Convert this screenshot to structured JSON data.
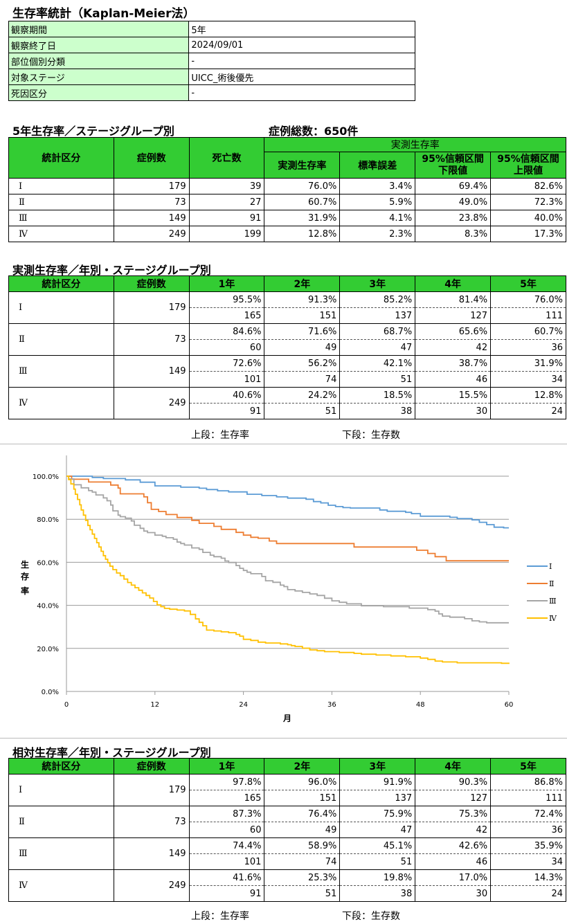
{
  "title": "生存率統計（Kaplan-Meier法）",
  "info": [
    {
      "label": "観察期間",
      "value": "5年"
    },
    {
      "label": "観察終了日",
      "value": "2024/09/01"
    },
    {
      "label": "部位個別分類",
      "value": "-"
    },
    {
      "label": "対象ステージ",
      "value": "UICC_術後優先"
    },
    {
      "label": "死因区分",
      "value": "-"
    }
  ],
  "section1": {
    "title": "5年生存率／ステージグループ別",
    "total": "症例総数：650件",
    "headers": {
      "group": "統計区分",
      "cases": "症例数",
      "deaths": "死亡数",
      "observed": "実測生存率",
      "rate": "実測生存率",
      "se": "標準誤差",
      "lower": "95%信頼区間\n下限値",
      "upper": "95%信頼区間\n上限値"
    },
    "rows": [
      [
        "Ⅰ",
        "179",
        "39",
        "76.0%",
        "3.4%",
        "69.4%",
        "82.6%"
      ],
      [
        "Ⅱ",
        "73",
        "27",
        "60.7%",
        "5.9%",
        "49.0%",
        "72.3%"
      ],
      [
        "Ⅲ",
        "149",
        "91",
        "31.9%",
        "4.1%",
        "23.8%",
        "40.0%"
      ],
      [
        "Ⅳ",
        "249",
        "199",
        "12.8%",
        "2.3%",
        "8.3%",
        "17.3%"
      ]
    ]
  },
  "section2": {
    "title": "実測生存率／年別・ステージグループ別",
    "headers": [
      "統計区分",
      "症例数",
      "1年",
      "2年",
      "3年",
      "4年",
      "5年"
    ],
    "rows": [
      {
        "stage": "Ⅰ",
        "cases": "179",
        "rates": [
          "95.5%",
          "91.3%",
          "85.2%",
          "81.4%",
          "76.0%"
        ],
        "counts": [
          "165",
          "151",
          "137",
          "127",
          "111"
        ]
      },
      {
        "stage": "Ⅱ",
        "cases": "73",
        "rates": [
          "84.6%",
          "71.6%",
          "68.7%",
          "65.6%",
          "60.7%"
        ],
        "counts": [
          "60",
          "49",
          "47",
          "42",
          "36"
        ]
      },
      {
        "stage": "Ⅲ",
        "cases": "149",
        "rates": [
          "72.6%",
          "56.2%",
          "42.1%",
          "38.7%",
          "31.9%"
        ],
        "counts": [
          "101",
          "74",
          "51",
          "46",
          "34"
        ]
      },
      {
        "stage": "Ⅳ",
        "cases": "249",
        "rates": [
          "40.6%",
          "24.2%",
          "18.5%",
          "15.5%",
          "12.8%"
        ],
        "counts": [
          "91",
          "51",
          "38",
          "30",
          "24"
        ]
      }
    ],
    "note_upper": "上段：生存率",
    "note_lower": "下段：生存数"
  },
  "section3": {
    "title": "相対生存率／年別・ステージグループ別",
    "headers": [
      "統計区分",
      "症例数",
      "1年",
      "2年",
      "3年",
      "4年",
      "5年"
    ],
    "rows": [
      {
        "stage": "Ⅰ",
        "cases": "179",
        "rates": [
          "97.8%",
          "96.0%",
          "91.9%",
          "90.3%",
          "86.8%"
        ],
        "counts": [
          "165",
          "151",
          "137",
          "127",
          "111"
        ]
      },
      {
        "stage": "Ⅱ",
        "cases": "73",
        "rates": [
          "87.3%",
          "76.4%",
          "75.9%",
          "75.3%",
          "72.4%"
        ],
        "counts": [
          "60",
          "49",
          "47",
          "42",
          "36"
        ]
      },
      {
        "stage": "Ⅲ",
        "cases": "149",
        "rates": [
          "74.4%",
          "58.9%",
          "45.1%",
          "42.6%",
          "35.9%"
        ],
        "counts": [
          "101",
          "74",
          "51",
          "46",
          "34"
        ]
      },
      {
        "stage": "Ⅳ",
        "cases": "249",
        "rates": [
          "41.6%",
          "25.3%",
          "19.8%",
          "17.0%",
          "14.3%"
        ],
        "counts": [
          "91",
          "51",
          "38",
          "30",
          "24"
        ]
      }
    ],
    "note_upper": "上段：生存率",
    "note_lower": "下段：生存数"
  },
  "chart_data": {
    "type": "line",
    "step": true,
    "xlabel": "月",
    "ylabel": "生存率",
    "xlim": [
      0,
      60
    ],
    "ylim": [
      0,
      100
    ],
    "xticks": [
      0,
      12,
      24,
      36,
      48,
      60
    ],
    "xtick_labels": [
      "0",
      "12",
      "24",
      "36",
      "48",
      "60"
    ],
    "yticks": [
      0,
      20,
      40,
      60,
      80,
      100
    ],
    "ytick_labels": [
      "0.0%",
      "20.0%",
      "40.0%",
      "60.0%",
      "80.0%",
      "100.0%"
    ],
    "grid": "horizontal",
    "legend_position": "right",
    "series": [
      {
        "name": "Ⅰ",
        "color": "#5b9bd5",
        "points": [
          [
            0,
            100
          ],
          [
            2,
            100
          ],
          [
            3.5,
            99.4
          ],
          [
            5,
            98.9
          ],
          [
            8,
            98.3
          ],
          [
            10,
            97.2
          ],
          [
            12,
            95.5
          ],
          [
            15,
            95.5
          ],
          [
            15.5,
            94.9
          ],
          [
            18,
            94.4
          ],
          [
            19,
            93.8
          ],
          [
            20.5,
            93.2
          ],
          [
            22,
            92.7
          ],
          [
            24,
            92.7
          ],
          [
            24.5,
            91.6
          ],
          [
            26.5,
            91
          ],
          [
            28.5,
            90.4
          ],
          [
            30,
            89.8
          ],
          [
            32.5,
            89.3
          ],
          [
            33.5,
            88.2
          ],
          [
            34.5,
            87.6
          ],
          [
            35.5,
            86.5
          ],
          [
            36.5,
            85.9
          ],
          [
            37.5,
            85.4
          ],
          [
            38.5,
            85.2
          ],
          [
            42,
            85.2
          ],
          [
            42.5,
            84.3
          ],
          [
            43.5,
            83.7
          ],
          [
            46,
            83.2
          ],
          [
            46.8,
            82.6
          ],
          [
            48,
            81.4
          ],
          [
            49,
            81.4
          ],
          [
            50,
            81.4
          ],
          [
            51.5,
            81.4
          ],
          [
            52,
            80.9
          ],
          [
            53,
            80.3
          ],
          [
            55,
            79.7
          ],
          [
            56,
            78.6
          ],
          [
            57,
            77.5
          ],
          [
            58,
            76.3
          ],
          [
            59.3,
            76
          ],
          [
            60,
            76
          ]
        ]
      },
      {
        "name": "Ⅱ",
        "color": "#ed7d31",
        "points": [
          [
            0,
            100
          ],
          [
            0.7,
            98.6
          ],
          [
            1,
            98.6
          ],
          [
            3,
            97.3
          ],
          [
            6,
            95.9
          ],
          [
            7,
            94.5
          ],
          [
            7.3,
            91.8
          ],
          [
            10,
            91.8
          ],
          [
            10.5,
            90.4
          ],
          [
            11,
            87.7
          ],
          [
            11.5,
            84.6
          ],
          [
            12,
            84.6
          ],
          [
            12.5,
            83.6
          ],
          [
            13.5,
            82.2
          ],
          [
            15,
            80.8
          ],
          [
            17,
            79.5
          ],
          [
            18,
            78.1
          ],
          [
            20,
            76.7
          ],
          [
            21,
            75.3
          ],
          [
            23,
            73.9
          ],
          [
            24,
            72.6
          ],
          [
            25,
            71.6
          ],
          [
            26,
            71.2
          ],
          [
            27.5,
            69.9
          ],
          [
            28.5,
            68.7
          ],
          [
            36,
            68.7
          ],
          [
            39,
            67.1
          ],
          [
            47,
            67.1
          ],
          [
            47.5,
            65.6
          ],
          [
            48,
            65.6
          ],
          [
            49,
            64.1
          ],
          [
            50,
            62.6
          ],
          [
            51.5,
            60.7
          ],
          [
            60,
            60.7
          ]
        ]
      },
      {
        "name": "Ⅲ",
        "color": "#a5a5a5",
        "points": [
          [
            0,
            100
          ],
          [
            0.3,
            98.7
          ],
          [
            1,
            96
          ],
          [
            2,
            94.6
          ],
          [
            3,
            93.3
          ],
          [
            3.5,
            92.6
          ],
          [
            4,
            91.3
          ],
          [
            5,
            89.9
          ],
          [
            5.5,
            88.6
          ],
          [
            6,
            86.6
          ],
          [
            6.3,
            83.9
          ],
          [
            7,
            81.9
          ],
          [
            7.3,
            81.2
          ],
          [
            8,
            80.5
          ],
          [
            8.8,
            79.2
          ],
          [
            9.2,
            77.2
          ],
          [
            10,
            75.8
          ],
          [
            10.5,
            74.5
          ],
          [
            11,
            73.8
          ],
          [
            12,
            72.6
          ],
          [
            13,
            72.1
          ],
          [
            13.5,
            71.4
          ],
          [
            14.5,
            70.7
          ],
          [
            15,
            69.4
          ],
          [
            15.5,
            68.7
          ],
          [
            16,
            68
          ],
          [
            17,
            66.7
          ],
          [
            18,
            66
          ],
          [
            18.5,
            64.6
          ],
          [
            19.5,
            63.3
          ],
          [
            20,
            62.6
          ],
          [
            21,
            61.9
          ],
          [
            21.5,
            60.6
          ],
          [
            22,
            59.9
          ],
          [
            23,
            58.5
          ],
          [
            23.5,
            57.2
          ],
          [
            24,
            56.2
          ],
          [
            24.5,
            55.4
          ],
          [
            25,
            54.7
          ],
          [
            26.5,
            53.4
          ],
          [
            27,
            51.4
          ],
          [
            28,
            50.7
          ],
          [
            29,
            49.4
          ],
          [
            29.5,
            48.7
          ],
          [
            30,
            47.3
          ],
          [
            31,
            46.7
          ],
          [
            32,
            46
          ],
          [
            33,
            45.3
          ],
          [
            34,
            44.6
          ],
          [
            35,
            43.3
          ],
          [
            36,
            42.1
          ],
          [
            37,
            41.4
          ],
          [
            38,
            40.7
          ],
          [
            40,
            39.8
          ],
          [
            43,
            39.4
          ],
          [
            46,
            39.4
          ],
          [
            46.5,
            38.7
          ],
          [
            47,
            38.7
          ],
          [
            48,
            38.7
          ],
          [
            49,
            38
          ],
          [
            50,
            37.3
          ],
          [
            50.5,
            36
          ],
          [
            51,
            35
          ],
          [
            52,
            34.5
          ],
          [
            52.5,
            34.5
          ],
          [
            54,
            33.8
          ],
          [
            55,
            32.8
          ],
          [
            56,
            32.3
          ],
          [
            57,
            31.9
          ],
          [
            60,
            31.9
          ]
        ]
      },
      {
        "name": "Ⅳ",
        "color": "#ffc000",
        "points": [
          [
            0,
            100
          ],
          [
            0.3,
            98.4
          ],
          [
            0.6,
            96.4
          ],
          [
            1,
            94
          ],
          [
            1.2,
            91.6
          ],
          [
            1.5,
            89.2
          ],
          [
            1.8,
            86.7
          ],
          [
            2,
            84.3
          ],
          [
            2.3,
            81.9
          ],
          [
            2.6,
            79.5
          ],
          [
            2.9,
            77.1
          ],
          [
            3.2,
            75.1
          ],
          [
            3.5,
            73.1
          ],
          [
            3.8,
            71.1
          ],
          [
            4.1,
            69.1
          ],
          [
            4.4,
            67.1
          ],
          [
            4.7,
            65.1
          ],
          [
            5,
            63.1
          ],
          [
            5.3,
            61.4
          ],
          [
            5.6,
            59.8
          ],
          [
            5.9,
            58.2
          ],
          [
            6.3,
            56.6
          ],
          [
            6.8,
            55
          ],
          [
            7.3,
            53.8
          ],
          [
            7.8,
            52.2
          ],
          [
            8.3,
            50.6
          ],
          [
            8.8,
            49.4
          ],
          [
            9.3,
            48.2
          ],
          [
            9.8,
            47
          ],
          [
            10.3,
            45.8
          ],
          [
            10.8,
            44.6
          ],
          [
            11.3,
            43.4
          ],
          [
            11.8,
            41.8
          ],
          [
            12.3,
            40.2
          ],
          [
            12.8,
            39.4
          ],
          [
            13.3,
            38.6
          ],
          [
            14,
            38.2
          ],
          [
            15,
            37.8
          ],
          [
            16,
            37.4
          ],
          [
            16.8,
            35.8
          ],
          [
            17.5,
            33.7
          ],
          [
            18,
            32.1
          ],
          [
            18.5,
            30.5
          ],
          [
            19,
            28.5
          ],
          [
            20,
            28.1
          ],
          [
            21,
            27.7
          ],
          [
            22,
            27.3
          ],
          [
            23,
            26.5
          ],
          [
            23.5,
            25.7
          ],
          [
            24,
            24.2
          ],
          [
            25,
            23.7
          ],
          [
            26,
            22.9
          ],
          [
            27,
            22.5
          ],
          [
            28,
            22.5
          ],
          [
            29,
            22.1
          ],
          [
            30,
            21.7
          ],
          [
            30.5,
            21.3
          ],
          [
            31,
            20.9
          ],
          [
            32,
            20.1
          ],
          [
            33,
            19.3
          ],
          [
            34,
            18.9
          ],
          [
            35,
            18.5
          ],
          [
            36,
            18.5
          ],
          [
            37,
            18.1
          ],
          [
            39,
            17.7
          ],
          [
            40,
            17.3
          ],
          [
            42,
            16.9
          ],
          [
            44,
            16.5
          ],
          [
            46,
            16.1
          ],
          [
            48,
            15.5
          ],
          [
            49,
            14.9
          ],
          [
            50,
            14.1
          ],
          [
            51,
            13.7
          ],
          [
            53,
            13.3
          ],
          [
            56,
            13.3
          ],
          [
            58,
            13.3
          ],
          [
            59,
            13.1
          ],
          [
            60,
            12.8
          ]
        ]
      }
    ]
  }
}
